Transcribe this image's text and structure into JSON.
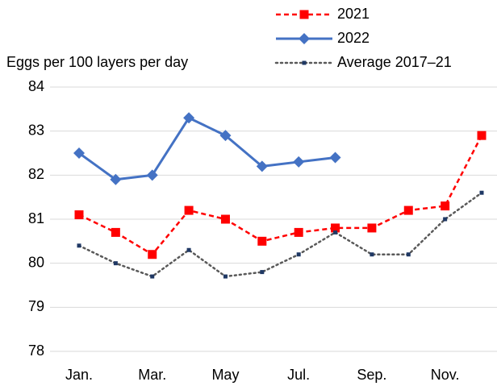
{
  "chart_data": {
    "type": "line",
    "y_label": "Eggs per 100 layers per day",
    "categories": [
      "Jan.",
      null,
      "Mar.",
      null,
      "May",
      null,
      "Jul.",
      null,
      "Sep.",
      null,
      "Nov.",
      null
    ],
    "series": [
      {
        "name": "2021",
        "color": "#ff0000",
        "line_style": "dashed",
        "marker": "square",
        "values": [
          81.1,
          80.7,
          80.2,
          81.2,
          81.0,
          80.5,
          80.7,
          80.8,
          80.8,
          81.2,
          81.3,
          82.9
        ]
      },
      {
        "name": "2022",
        "color": "#4472c4",
        "line_style": "solid",
        "marker": "diamond",
        "values": [
          82.5,
          81.9,
          82.0,
          83.3,
          82.9,
          82.2,
          82.3,
          82.4,
          null,
          null,
          null,
          null
        ]
      },
      {
        "name": "Average 2017–21",
        "color": "#595959",
        "marker_color": "#1f3864",
        "line_style": "dotted",
        "marker": "small-square",
        "values": [
          80.4,
          80.0,
          79.7,
          80.3,
          79.7,
          79.8,
          80.2,
          80.7,
          80.2,
          80.2,
          81.0,
          81.6
        ]
      }
    ],
    "ylim": [
      78,
      84
    ],
    "yticks": [
      78,
      79,
      80,
      81,
      82,
      83,
      84
    ],
    "grid": true,
    "legend": "top-right"
  }
}
